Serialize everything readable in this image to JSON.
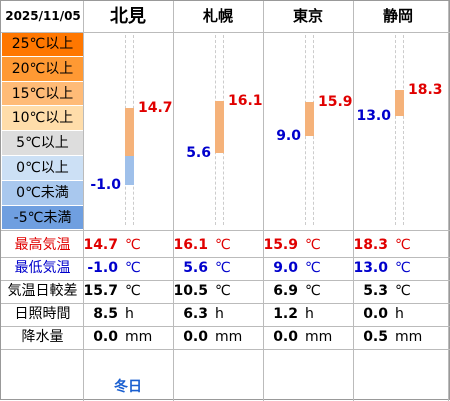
{
  "date": "2025/11/05",
  "stations": [
    {
      "name": "北見",
      "is_main": true,
      "max": "14.7",
      "min": "-1.0",
      "diff": "15.7",
      "sun": "8.5",
      "rain": "0.0",
      "hi": 14.7,
      "lo": -1.0,
      "footer": "冬日"
    },
    {
      "name": "札幌",
      "max": "16.1",
      "min": "5.6",
      "diff": "10.5",
      "sun": "6.3",
      "rain": "0.0",
      "hi": 16.1,
      "lo": 5.6,
      "footer": ""
    },
    {
      "name": "東京",
      "max": "15.9",
      "min": "9.0",
      "diff": "6.9",
      "sun": "1.2",
      "rain": "0.0",
      "hi": 15.9,
      "lo": 9.0,
      "footer": ""
    },
    {
      "name": "静岡",
      "max": "18.3",
      "min": "13.0",
      "diff": "5.3",
      "sun": "0.0",
      "rain": "0.5",
      "hi": 18.3,
      "lo": 13.0,
      "footer": ""
    }
  ],
  "bands": [
    {
      "label": "25℃以上",
      "color": "#ff7700"
    },
    {
      "label": "20℃以上",
      "color": "#ff9933"
    },
    {
      "label": "15℃以上",
      "color": "#ffbb77"
    },
    {
      "label": "10℃以上",
      "color": "#ffddaa"
    },
    {
      "label": "5℃以上",
      "color": "#dddddd"
    },
    {
      "label": "0℃以上",
      "color": "#cce0f5"
    },
    {
      "label": "0℃未満",
      "color": "#a9c8ee"
    },
    {
      "label": "-5℃未満",
      "color": "#6f9fe0"
    }
  ],
  "rows": {
    "max": {
      "label": "最高気温",
      "unit": "℃",
      "color": "#e00000"
    },
    "min": {
      "label": "最低気温",
      "unit": "℃",
      "color": "#0000cc"
    },
    "diff": {
      "label": "気温日較差",
      "unit": "℃",
      "color": "#000000"
    },
    "sun": {
      "label": "日照時間",
      "unit": "h",
      "color": "#000000"
    },
    "rain": {
      "label": "降水量",
      "unit": "mm",
      "color": "#000000"
    }
  },
  "colors": {
    "warm_bar": "#f5b27a",
    "cool_bar": "#9fc0ea",
    "footer": "#1a5fd0"
  }
}
